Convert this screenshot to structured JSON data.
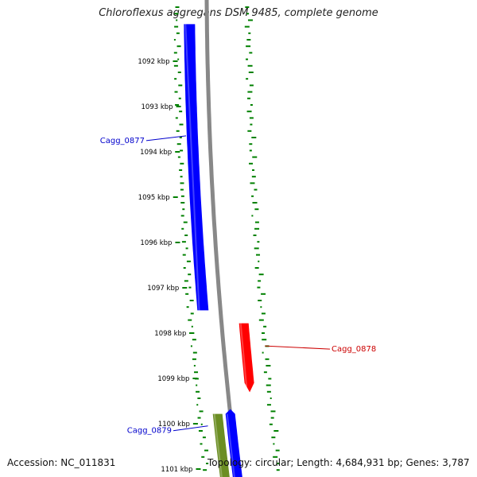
{
  "title": "Chloroflexus aggregans DSM 9485, complete genome",
  "ticks": [
    {
      "label": "1092 kbp",
      "kbp": 1092
    },
    {
      "label": "1093 kbp",
      "kbp": 1093
    },
    {
      "label": "1094 kbp",
      "kbp": 1094
    },
    {
      "label": "1095 kbp",
      "kbp": 1095
    },
    {
      "label": "1096 kbp",
      "kbp": 1096
    },
    {
      "label": "1097 kbp",
      "kbp": 1097
    },
    {
      "label": "1098 kbp",
      "kbp": 1098
    },
    {
      "label": "1099 kbp",
      "kbp": 1099
    },
    {
      "label": "1100 kbp",
      "kbp": 1100
    },
    {
      "label": "1101 kbp",
      "kbp": 1101
    }
  ],
  "genes": [
    {
      "id": "Cagg_0877",
      "label": "Cagg_0877",
      "strand": "forward",
      "start_kbp": 1091.2,
      "end_kbp": 1097.6,
      "color": "#0000ff"
    },
    {
      "id": "Cagg_0878",
      "label": "Cagg_0878",
      "strand": "reverse",
      "start_kbp": 1097.8,
      "end_kbp": 1099.2,
      "color": "#ff0000"
    },
    {
      "id": "Cagg_0879",
      "label": "Cagg_0879",
      "strand": "forward",
      "start_kbp": 1099.8,
      "end_kbp": 1101.3,
      "color": "#6b8e23"
    },
    {
      "id": "Cagg_0880",
      "label": "",
      "strand": "forward",
      "start_kbp": 1099.8,
      "end_kbp": 1101.3,
      "color": "#0000ff"
    }
  ],
  "colors": {
    "backbone": "#888888",
    "gc_dots": "#008000",
    "forward_label": "#0000cc",
    "reverse_label": "#cc0000"
  },
  "footer": {
    "accession": "Accession: NC_011831",
    "summary": "Topology: circular; Length: 4,684,931 bp; Genes: 3,787"
  }
}
